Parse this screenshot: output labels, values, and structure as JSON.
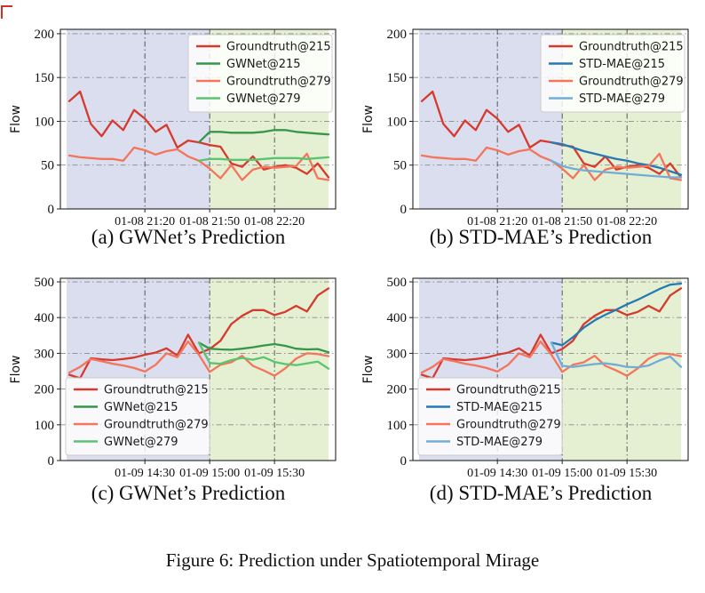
{
  "figure_caption": "Figure 6: Prediction under Spatiotemporal Mirage",
  "styles": {
    "history_region": "#dadeee",
    "prediction_region": "#e5f0d2",
    "grid_h_color": "#8a8a8a",
    "grid_v_color": "#4a4a4a",
    "axis_color": "#222222",
    "tick_label_color": "#111111",
    "legend_bg": "#ffffff",
    "legend_border": "#cccccc",
    "red": "#d63a2c",
    "dark_green": "#36964a",
    "coral": "#f4755c",
    "light_green": "#5ac46e",
    "blue": "#2779b4",
    "light_blue": "#72add8"
  },
  "chart_data": [
    {
      "id": "a",
      "caption": "(a) GWNet’s Prediction",
      "type": "line",
      "ylabel": "Flow",
      "ylim": [
        0,
        205
      ],
      "yticks": [
        0,
        50,
        100,
        150,
        200
      ],
      "x_count": 25,
      "boundary_pos": 13,
      "legend_position": "upper-right",
      "xticks": [
        {
          "pos": 7,
          "label": "01-08 21:20"
        },
        {
          "pos": 13,
          "label": "01-08 21:50"
        },
        {
          "pos": 19,
          "label": "01-08 22:20"
        }
      ],
      "series": [
        {
          "name": "Groundtruth@215",
          "color": "#d63a2c",
          "start": 0,
          "values": [
            123,
            134,
            97,
            83,
            101,
            90,
            113,
            103,
            88,
            96,
            70,
            78,
            76,
            73,
            71,
            52,
            48,
            60,
            45,
            48,
            50,
            47,
            40,
            52,
            36
          ]
        },
        {
          "name": "GWNet@215",
          "color": "#36964a",
          "start": 12,
          "values": [
            76,
            88,
            88,
            87,
            87,
            87,
            88,
            90,
            90,
            88,
            87,
            86,
            85
          ]
        },
        {
          "name": "Groundtruth@279",
          "color": "#f4755c",
          "start": 0,
          "values": [
            61,
            59,
            58,
            57,
            57,
            55,
            70,
            67,
            62,
            66,
            68,
            60,
            55,
            46,
            35,
            50,
            33,
            45,
            48,
            47,
            48,
            49,
            63,
            35,
            33
          ]
        },
        {
          "name": "GWNet@279",
          "color": "#5ac46e",
          "start": 12,
          "values": [
            55,
            57,
            57,
            56,
            56,
            56,
            57,
            58,
            58,
            58,
            57,
            58,
            59
          ]
        }
      ]
    },
    {
      "id": "b",
      "caption": "(b) STD-MAE’s Prediction",
      "type": "line",
      "ylabel": "Flow",
      "ylim": [
        0,
        205
      ],
      "yticks": [
        0,
        50,
        100,
        150,
        200
      ],
      "x_count": 25,
      "boundary_pos": 13,
      "legend_position": "upper-right",
      "xticks": [
        {
          "pos": 7,
          "label": "01-08 21:20"
        },
        {
          "pos": 13,
          "label": "01-08 21:50"
        },
        {
          "pos": 19,
          "label": "01-08 22:20"
        }
      ],
      "series": [
        {
          "name": "Groundtruth@215",
          "color": "#d63a2c",
          "start": 0,
          "values": [
            123,
            134,
            97,
            83,
            101,
            90,
            113,
            103,
            88,
            96,
            70,
            78,
            76,
            73,
            71,
            52,
            48,
            60,
            45,
            48,
            50,
            47,
            40,
            52,
            36
          ]
        },
        {
          "name": "STD-MAE@215",
          "color": "#2779b4",
          "start": 12,
          "values": [
            76,
            74,
            70,
            66,
            63,
            60,
            57,
            55,
            52,
            50,
            47,
            43,
            39
          ]
        },
        {
          "name": "Groundtruth@279",
          "color": "#f4755c",
          "start": 0,
          "values": [
            61,
            59,
            58,
            57,
            57,
            55,
            70,
            67,
            62,
            66,
            68,
            60,
            55,
            46,
            35,
            50,
            33,
            45,
            48,
            47,
            48,
            49,
            63,
            35,
            33
          ]
        },
        {
          "name": "STD-MAE@279",
          "color": "#72add8",
          "start": 12,
          "values": [
            55,
            49,
            46,
            44,
            43,
            42,
            41,
            40,
            39,
            38,
            37,
            36,
            36
          ]
        }
      ]
    },
    {
      "id": "c",
      "caption": "(c) GWNet’s Prediction",
      "type": "line",
      "ylabel": "Flow",
      "ylim": [
        0,
        510
      ],
      "yticks": [
        0,
        100,
        200,
        300,
        400,
        500
      ],
      "x_count": 25,
      "boundary_pos": 13,
      "legend_position": "lower-left",
      "xticks": [
        {
          "pos": 7,
          "label": "01-09 14:30"
        },
        {
          "pos": 13,
          "label": "01-09 15:00"
        },
        {
          "pos": 19,
          "label": "01-09 15:30"
        }
      ],
      "series": [
        {
          "name": "Groundtruth@215",
          "color": "#d63a2c",
          "start": 0,
          "values": [
            240,
            230,
            286,
            283,
            281,
            284,
            288,
            296,
            302,
            314,
            294,
            352,
            300,
            312,
            335,
            382,
            405,
            421,
            421,
            407,
            416,
            433,
            417,
            462,
            482
          ]
        },
        {
          "name": "GWNet@215",
          "color": "#36964a",
          "start": 12,
          "values": [
            330,
            313,
            311,
            310,
            313,
            317,
            322,
            326,
            321,
            313,
            311,
            312,
            303
          ]
        },
        {
          "name": "Groundtruth@279",
          "color": "#f4755c",
          "start": 0,
          "values": [
            246,
            262,
            284,
            278,
            271,
            266,
            259,
            249,
            268,
            300,
            289,
            333,
            296,
            248,
            268,
            275,
            293,
            265,
            252,
            237,
            258,
            285,
            300,
            298,
            292
          ]
        },
        {
          "name": "GWNet@279",
          "color": "#5ac46e",
          "start": 12,
          "values": [
            330,
            273,
            271,
            281,
            287,
            282,
            289,
            276,
            270,
            267,
            272,
            277,
            257
          ]
        }
      ]
    },
    {
      "id": "d",
      "caption": "(d) STD-MAE’s Prediction",
      "type": "line",
      "ylabel": "Flow",
      "ylim": [
        0,
        510
      ],
      "yticks": [
        0,
        100,
        200,
        300,
        400,
        500
      ],
      "x_count": 25,
      "boundary_pos": 13,
      "legend_position": "lower-left",
      "xticks": [
        {
          "pos": 7,
          "label": "01-09 14:30"
        },
        {
          "pos": 13,
          "label": "01-09 15:00"
        },
        {
          "pos": 19,
          "label": "01-09 15:30"
        }
      ],
      "series": [
        {
          "name": "Groundtruth@215",
          "color": "#d63a2c",
          "start": 0,
          "values": [
            240,
            230,
            286,
            283,
            281,
            284,
            288,
            296,
            302,
            314,
            294,
            352,
            300,
            312,
            335,
            382,
            405,
            421,
            421,
            407,
            416,
            433,
            417,
            462,
            482
          ]
        },
        {
          "name": "STD-MAE@215",
          "color": "#2779b4",
          "start": 12,
          "values": [
            330,
            323,
            345,
            372,
            392,
            408,
            422,
            437,
            450,
            465,
            480,
            492,
            495
          ]
        },
        {
          "name": "Groundtruth@279",
          "color": "#f4755c",
          "start": 0,
          "values": [
            246,
            262,
            284,
            278,
            271,
            266,
            259,
            249,
            268,
            300,
            289,
            333,
            296,
            248,
            268,
            275,
            293,
            265,
            252,
            237,
            258,
            285,
            300,
            298,
            292
          ]
        },
        {
          "name": "STD-MAE@279",
          "color": "#72add8",
          "start": 12,
          "values": [
            330,
            265,
            262,
            266,
            270,
            272,
            268,
            262,
            261,
            266,
            280,
            291,
            262
          ]
        }
      ]
    }
  ]
}
